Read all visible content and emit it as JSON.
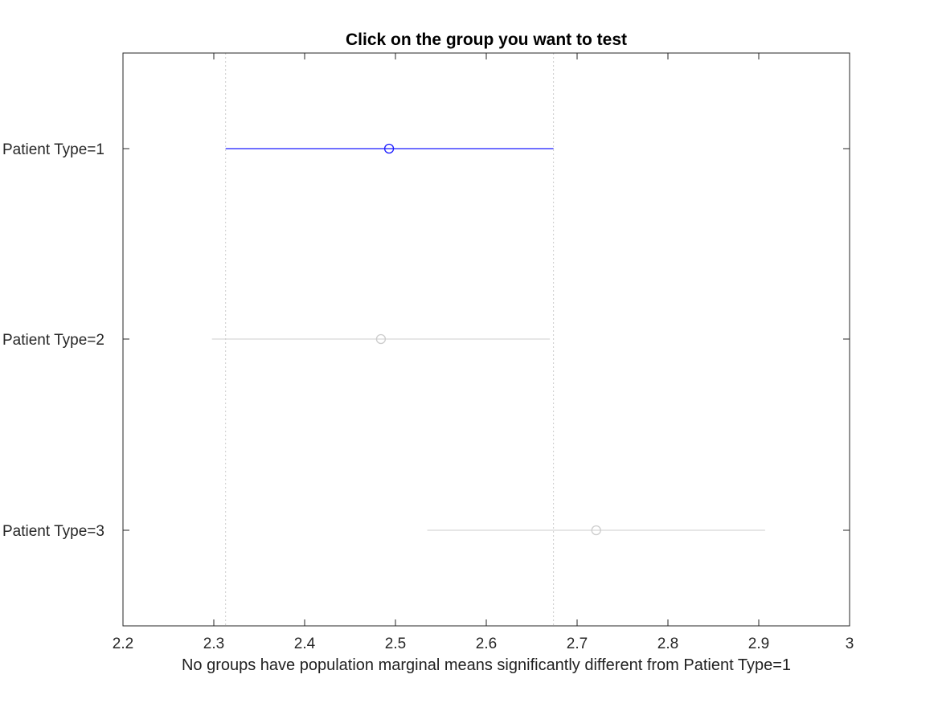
{
  "chart_data": {
    "type": "scatter",
    "title": "Click on the group you want to test",
    "xlabel": "No groups have population marginal means significantly different from Patient Type=1",
    "ylabel": "",
    "xlim": [
      2.2,
      3.0
    ],
    "xticks": [
      "2.2",
      "2.3",
      "2.4",
      "2.5",
      "2.6",
      "2.7",
      "2.8",
      "2.9",
      "3"
    ],
    "grid": false,
    "selected_group": "Patient Type=1",
    "colors": {
      "selected": "#1a1aff",
      "other": "#cccccc",
      "reference_lines": "#cccccc",
      "axes": "#262626"
    },
    "groups": [
      {
        "label": "Patient Type=1",
        "mean": 2.493,
        "lower": 2.313,
        "upper": 2.674,
        "selected": true
      },
      {
        "label": "Patient Type=2",
        "mean": 2.484,
        "lower": 2.298,
        "upper": 2.67,
        "selected": false
      },
      {
        "label": "Patient Type=3",
        "mean": 2.721,
        "lower": 2.535,
        "upper": 2.907,
        "selected": false
      }
    ],
    "reference_lines": [
      2.313,
      2.674
    ]
  }
}
